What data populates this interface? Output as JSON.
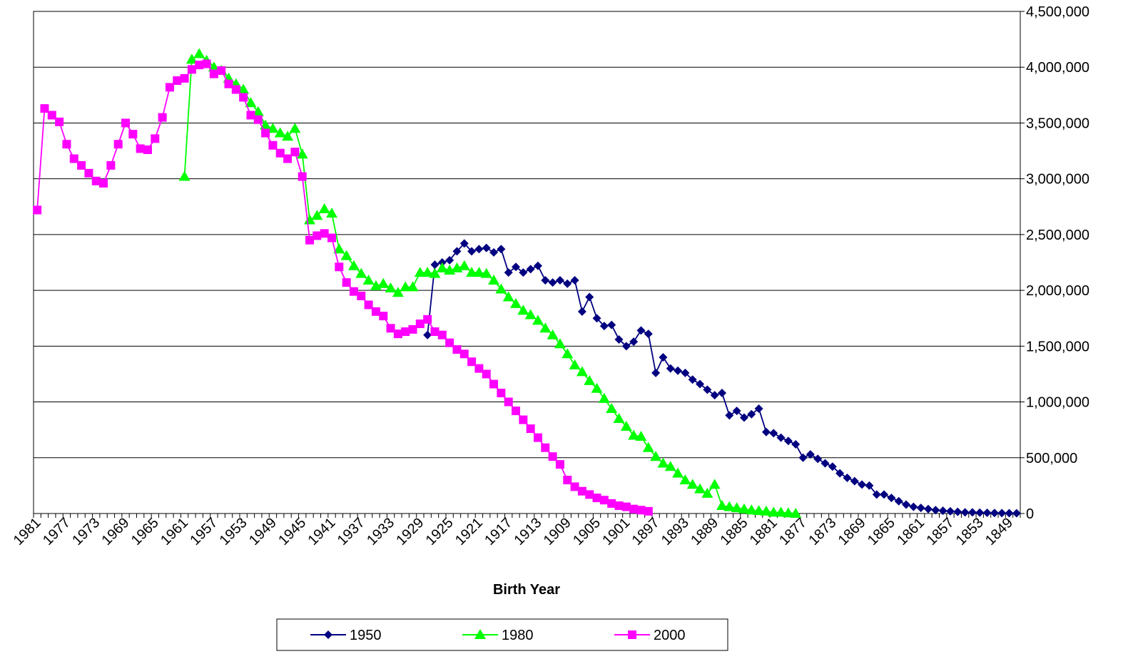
{
  "chart_data": {
    "type": "line",
    "xlabel": "Birth Year",
    "categories": [
      "1981",
      null,
      null,
      null,
      "1977",
      null,
      null,
      null,
      "1973",
      null,
      null,
      null,
      "1969",
      null,
      null,
      null,
      "1965",
      null,
      null,
      null,
      "1961",
      null,
      null,
      null,
      "1957",
      null,
      null,
      null,
      "1953",
      null,
      null,
      null,
      "1949",
      null,
      null,
      null,
      "1945",
      null,
      null,
      null,
      "1941",
      null,
      null,
      null,
      "1937",
      null,
      null,
      null,
      "1933",
      null,
      null,
      null,
      "1929",
      null,
      null,
      null,
      "1925",
      null,
      null,
      null,
      "1921",
      null,
      null,
      null,
      "1917",
      null,
      null,
      null,
      "1913",
      null,
      null,
      null,
      "1909",
      null,
      null,
      null,
      "1905",
      null,
      null,
      null,
      "1901",
      null,
      null,
      null,
      "1897",
      null,
      null,
      null,
      "1893",
      null,
      null,
      null,
      "1889",
      null,
      null,
      null,
      "1885",
      null,
      null,
      null,
      "1881",
      null,
      null,
      null,
      "1877",
      null,
      null,
      null,
      "1873",
      null,
      null,
      null,
      "1869",
      null,
      null,
      null,
      "1865",
      null,
      null,
      null,
      "1861",
      null,
      null,
      null,
      "1857",
      null,
      null,
      null,
      "1853",
      null,
      null,
      null,
      "1849",
      null
    ],
    "series": [
      {
        "name": "1950",
        "color": "#000080",
        "marker": "diamond",
        "values": [
          null,
          null,
          null,
          null,
          null,
          null,
          null,
          null,
          null,
          null,
          null,
          null,
          null,
          null,
          null,
          null,
          null,
          null,
          null,
          null,
          null,
          null,
          null,
          null,
          null,
          null,
          null,
          null,
          null,
          null,
          null,
          null,
          null,
          null,
          null,
          null,
          null,
          null,
          null,
          null,
          null,
          null,
          null,
          null,
          null,
          null,
          null,
          null,
          null,
          null,
          null,
          null,
          null,
          1600000,
          2230000,
          2250000,
          2270000,
          2350000,
          2420000,
          2350000,
          2370000,
          2380000,
          2340000,
          2370000,
          2160000,
          2210000,
          2160000,
          2190000,
          2220000,
          2090000,
          2070000,
          2090000,
          2060000,
          2090000,
          1810000,
          1940000,
          1750000,
          1680000,
          1690000,
          1560000,
          1500000,
          1540000,
          1640000,
          1610000,
          1260000,
          1400000,
          1300000,
          1280000,
          1260000,
          1200000,
          1160000,
          1110000,
          1060000,
          1080000,
          880000,
          920000,
          860000,
          890000,
          940000,
          730000,
          720000,
          680000,
          650000,
          620000,
          500000,
          530000,
          490000,
          450000,
          420000,
          360000,
          320000,
          290000,
          260000,
          250000,
          170000,
          170000,
          140000,
          110000,
          80000,
          60000,
          50000,
          40000,
          30000,
          25000,
          20000,
          15000,
          10000,
          10000,
          8000,
          6000,
          5000,
          4000,
          3000,
          2000
        ]
      },
      {
        "name": "1980",
        "color": "#00ff00",
        "marker": "triangle",
        "values": [
          null,
          null,
          null,
          null,
          null,
          null,
          null,
          null,
          null,
          null,
          null,
          null,
          null,
          null,
          null,
          null,
          null,
          null,
          null,
          null,
          3020000,
          4070000,
          4120000,
          4060000,
          4000000,
          3970000,
          3900000,
          3850000,
          3800000,
          3680000,
          3600000,
          3480000,
          3450000,
          3410000,
          3380000,
          3450000,
          3220000,
          2630000,
          2670000,
          2730000,
          2690000,
          2370000,
          2310000,
          2220000,
          2150000,
          2090000,
          2040000,
          2060000,
          2020000,
          1980000,
          2030000,
          2030000,
          2160000,
          2160000,
          2150000,
          2200000,
          2180000,
          2200000,
          2220000,
          2160000,
          2160000,
          2150000,
          2090000,
          2010000,
          1940000,
          1880000,
          1820000,
          1780000,
          1730000,
          1660000,
          1600000,
          1520000,
          1430000,
          1330000,
          1270000,
          1190000,
          1120000,
          1030000,
          940000,
          850000,
          780000,
          700000,
          690000,
          590000,
          510000,
          450000,
          420000,
          360000,
          300000,
          260000,
          220000,
          180000,
          260000,
          70000,
          60000,
          50000,
          40000,
          30000,
          25000,
          20000,
          10000,
          10000,
          5000,
          0,
          null,
          null,
          null,
          null,
          null,
          null,
          null,
          null,
          null,
          null,
          null,
          null,
          null,
          null,
          null,
          null,
          null,
          null,
          null,
          null,
          null,
          null,
          null,
          null,
          null,
          null,
          null,
          null,
          null,
          null
        ]
      },
      {
        "name": "2000",
        "color": "#ff00ff",
        "marker": "square",
        "values": [
          2720000,
          3630000,
          3570000,
          3510000,
          3310000,
          3180000,
          3120000,
          3050000,
          2980000,
          2960000,
          3120000,
          3310000,
          3500000,
          3400000,
          3270000,
          3260000,
          3360000,
          3550000,
          3820000,
          3880000,
          3900000,
          3980000,
          4020000,
          4030000,
          3940000,
          3970000,
          3850000,
          3800000,
          3730000,
          3570000,
          3530000,
          3410000,
          3300000,
          3230000,
          3180000,
          3240000,
          3020000,
          2450000,
          2490000,
          2510000,
          2470000,
          2210000,
          2070000,
          1990000,
          1950000,
          1870000,
          1810000,
          1770000,
          1660000,
          1610000,
          1630000,
          1650000,
          1700000,
          1740000,
          1630000,
          1600000,
          1530000,
          1470000,
          1430000,
          1360000,
          1300000,
          1250000,
          1160000,
          1080000,
          1000000,
          920000,
          840000,
          760000,
          680000,
          590000,
          510000,
          440000,
          300000,
          240000,
          200000,
          170000,
          140000,
          120000,
          90000,
          70000,
          60000,
          40000,
          30000,
          20000,
          null,
          null,
          null,
          null,
          null,
          null,
          null,
          null,
          null,
          null,
          null,
          null,
          null,
          null,
          null,
          null,
          null,
          null,
          null,
          null,
          null,
          null,
          null,
          null,
          null,
          null,
          null,
          null,
          null,
          null,
          null,
          null,
          null,
          null,
          null,
          null,
          null,
          null,
          null,
          null,
          null,
          null,
          null,
          null,
          null,
          null,
          null,
          null,
          null,
          null
        ]
      }
    ],
    "ylim": [
      0,
      4500000
    ],
    "yticks": [
      0,
      {
        "value": 500000,
        "label": "500,000"
      },
      {
        "value": 1000000,
        "label": "1,000,000"
      },
      {
        "value": 1500000,
        "label": "1,500,000"
      },
      {
        "value": 2000000,
        "label": "2,000,000"
      },
      {
        "value": 2500000,
        "label": "2,500,000"
      },
      {
        "value": 3000000,
        "label": "3,000,000"
      },
      {
        "value": 3500000,
        "label": "3,500,000"
      },
      {
        "value": 4000000,
        "label": "4,000,000"
      },
      {
        "value": 4500000,
        "label": "4,500,000"
      }
    ],
    "y_axis_side": "right",
    "grid": true,
    "legend": "bottom"
  }
}
